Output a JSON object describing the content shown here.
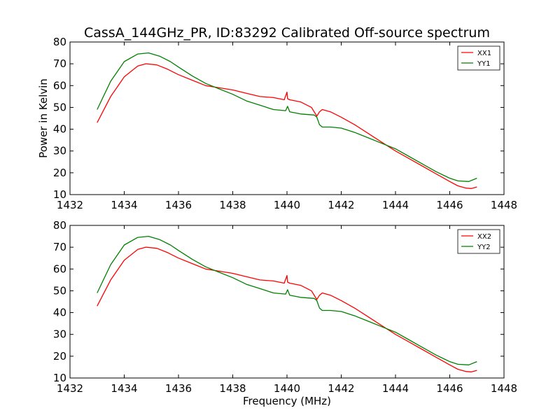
{
  "title": "CassA_144GHz_PR, ID:83292 Calibrated Off-source spectrum",
  "chart_data": [
    {
      "type": "line",
      "xlabel": "",
      "ylabel": "Power in Kelvin",
      "xlim": [
        1432,
        1448
      ],
      "ylim": [
        10,
        80
      ],
      "xticks": [
        1432,
        1434,
        1436,
        1438,
        1440,
        1442,
        1444,
        1446,
        1448
      ],
      "yticks": [
        10,
        20,
        30,
        40,
        50,
        60,
        70,
        80
      ],
      "legend_position": "top-right",
      "series": [
        {
          "name": "XX1",
          "color": "#ff0000",
          "x": [
            1433.0,
            1433.5,
            1434.0,
            1434.5,
            1434.8,
            1435.2,
            1435.6,
            1436.0,
            1436.5,
            1437.0,
            1437.5,
            1438.0,
            1438.5,
            1439.0,
            1439.5,
            1439.9,
            1440.0,
            1440.02,
            1440.1,
            1440.5,
            1440.9,
            1441.1,
            1441.2,
            1441.3,
            1441.6,
            1442.0,
            1442.5,
            1443.0,
            1443.5,
            1444.0,
            1444.5,
            1445.0,
            1445.5,
            1446.0,
            1446.3,
            1446.6,
            1446.8,
            1447.0
          ],
          "y": [
            43,
            55,
            64,
            69,
            70,
            69.5,
            67.5,
            65,
            62.5,
            60,
            59,
            58,
            56.5,
            55,
            54.5,
            53.5,
            57,
            54,
            53.5,
            52.5,
            50,
            46,
            48,
            49,
            48,
            45.5,
            42,
            38,
            34,
            30,
            26.5,
            23,
            19.5,
            16,
            14,
            13,
            12.8,
            13.5
          ]
        },
        {
          "name": "YY1",
          "color": "#008000",
          "x": [
            1433.0,
            1433.5,
            1434.0,
            1434.5,
            1434.9,
            1435.3,
            1435.7,
            1436.0,
            1436.5,
            1437.0,
            1437.5,
            1438.0,
            1438.5,
            1439.0,
            1439.5,
            1439.95,
            1440.02,
            1440.1,
            1440.5,
            1441.0,
            1441.1,
            1441.2,
            1441.3,
            1441.6,
            1442.0,
            1442.5,
            1443.0,
            1443.5,
            1444.0,
            1444.5,
            1445.0,
            1445.5,
            1446.0,
            1446.3,
            1446.7,
            1447.0
          ],
          "y": [
            49,
            62,
            71,
            74.5,
            75,
            73.5,
            71,
            68.5,
            64.5,
            61,
            58.5,
            56,
            53,
            51,
            49,
            48.5,
            50.5,
            48,
            47,
            46.5,
            45.5,
            42,
            41,
            41,
            40.5,
            38.5,
            36,
            33.5,
            31,
            27.5,
            24,
            20.5,
            17.5,
            16.3,
            16,
            17.5
          ]
        }
      ]
    },
    {
      "type": "line",
      "xlabel": "Frequency (MHz)",
      "ylabel": "",
      "xlim": [
        1432,
        1448
      ],
      "ylim": [
        10,
        80
      ],
      "xticks": [
        1432,
        1434,
        1436,
        1438,
        1440,
        1442,
        1444,
        1446,
        1448
      ],
      "yticks": [
        10,
        20,
        30,
        40,
        50,
        60,
        70,
        80
      ],
      "legend_position": "top-right",
      "series": [
        {
          "name": "XX2",
          "color": "#ff0000",
          "x": [
            1433.0,
            1433.5,
            1434.0,
            1434.5,
            1434.8,
            1435.2,
            1435.6,
            1436.0,
            1436.5,
            1437.0,
            1437.5,
            1438.0,
            1438.5,
            1439.0,
            1439.5,
            1439.9,
            1440.0,
            1440.02,
            1440.1,
            1440.5,
            1440.9,
            1441.1,
            1441.2,
            1441.3,
            1441.6,
            1442.0,
            1442.5,
            1443.0,
            1443.5,
            1444.0,
            1444.5,
            1445.0,
            1445.5,
            1446.0,
            1446.3,
            1446.6,
            1446.8,
            1447.0
          ],
          "y": [
            43,
            55,
            64,
            69,
            70,
            69.5,
            67.5,
            65,
            62.5,
            60,
            59,
            58,
            56.5,
            55,
            54.5,
            53.5,
            57,
            54,
            53.5,
            52.5,
            50,
            46,
            48,
            49,
            48,
            45.5,
            42,
            38,
            34,
            30,
            26.5,
            23,
            19.5,
            16,
            14,
            13,
            12.8,
            13.5
          ]
        },
        {
          "name": "YY2",
          "color": "#008000",
          "x": [
            1433.0,
            1433.5,
            1434.0,
            1434.5,
            1434.9,
            1435.3,
            1435.7,
            1436.0,
            1436.5,
            1437.0,
            1437.5,
            1438.0,
            1438.5,
            1439.0,
            1439.5,
            1439.95,
            1440.02,
            1440.1,
            1440.5,
            1441.0,
            1441.1,
            1441.2,
            1441.3,
            1441.6,
            1442.0,
            1442.5,
            1443.0,
            1443.5,
            1444.0,
            1444.5,
            1445.0,
            1445.5,
            1446.0,
            1446.3,
            1446.7,
            1447.0
          ],
          "y": [
            49,
            62,
            71,
            74.5,
            75,
            73.5,
            71,
            68.5,
            64.5,
            61,
            58.5,
            56,
            53,
            51,
            49,
            48.5,
            50.5,
            48,
            47,
            46.5,
            45.5,
            42,
            41,
            41,
            40.5,
            38.5,
            36,
            33.5,
            31,
            27.5,
            24,
            20.5,
            17.5,
            16.3,
            16,
            17.5
          ]
        }
      ]
    }
  ]
}
